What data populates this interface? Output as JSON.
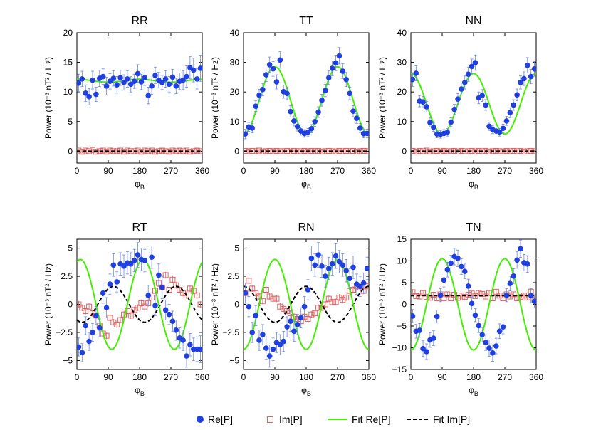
{
  "colors": {
    "re": "#1f3fe0",
    "im": "#e06060",
    "fit_re": "#44ee00",
    "fit_im": "#000000",
    "errbar_re": "#6a86e6"
  },
  "legend": {
    "re": "Re[P]",
    "im": "Im[P]",
    "fit_re": "Fit Re[P]",
    "fit_im": "Fit Im[P]"
  },
  "chart_data": [
    {
      "type": "scatter",
      "title": "RR",
      "xlabel": "φB",
      "ylabel": "Power (10⁻³ nT² / Hz)",
      "xlim": [
        0,
        360
      ],
      "ylim": [
        -2,
        20
      ],
      "xticks": [
        0,
        90,
        180,
        270,
        360
      ],
      "yticks": [
        0,
        5,
        10,
        15,
        20
      ],
      "x": [
        5,
        15,
        25,
        35,
        45,
        55,
        65,
        75,
        85,
        95,
        105,
        115,
        125,
        135,
        145,
        155,
        165,
        175,
        185,
        195,
        205,
        215,
        225,
        235,
        245,
        255,
        265,
        275,
        285,
        295,
        305,
        315,
        325,
        335,
        345,
        355
      ],
      "re": [
        11.5,
        12.2,
        9.8,
        9.2,
        12.0,
        9.6,
        12.3,
        12.6,
        11.0,
        11.8,
        12.3,
        11.2,
        12.4,
        11.6,
        12.2,
        11.3,
        11.8,
        13.1,
        11.7,
        12.4,
        9.4,
        11.0,
        12.8,
        12.0,
        11.6,
        12.2,
        11.3,
        12.5,
        11.0,
        11.8,
        12.0,
        12.6,
        14.1,
        13.7,
        12.2,
        14.0
      ],
      "re_err": [
        1.5,
        1.3,
        1.4,
        1.4,
        1.5,
        1.2,
        1.4,
        1.3,
        1.5,
        1.3,
        1.3,
        1.4,
        1.3,
        1.3,
        1.4,
        1.3,
        1.2,
        1.5,
        1.3,
        1.3,
        1.4,
        1.4,
        1.4,
        1.3,
        1.2,
        1.4,
        1.3,
        1.3,
        1.3,
        1.4,
        1.6,
        1.8,
        1.9,
        2.0,
        1.7,
        2.2
      ],
      "im": [
        0.1,
        -0.1,
        0.1,
        0.0,
        0.2,
        -0.1,
        0.0,
        0.1,
        -0.1,
        0.1,
        0.0,
        0.0,
        0.1,
        -0.1,
        0.1,
        0.0,
        0.0,
        0.1,
        -0.1,
        0.1,
        0.0,
        0.1,
        -0.1,
        0.0,
        0.1,
        0.0,
        -0.1,
        0.1,
        0.0,
        0.1,
        0.0,
        0.1,
        -0.1,
        0.0,
        0.1,
        0.0
      ],
      "im_err": 0.25,
      "fit_re": {
        "mean": 11.9,
        "amp": 0.25,
        "phase_deg": 0
      },
      "fit_im": {
        "mean": 0.0,
        "amp": 0.0,
        "phase_deg": 0
      }
    },
    {
      "type": "scatter",
      "title": "TT",
      "xlabel": "φB",
      "ylabel": "Power (10⁻³ nT² / Hz)",
      "xlim": [
        0,
        360
      ],
      "ylim": [
        -4,
        40
      ],
      "xticks": [
        0,
        90,
        180,
        270,
        360
      ],
      "yticks": [
        0,
        10,
        20,
        30,
        40
      ],
      "x": [
        5,
        15,
        25,
        35,
        45,
        55,
        65,
        75,
        85,
        95,
        105,
        115,
        125,
        135,
        145,
        155,
        165,
        175,
        185,
        195,
        205,
        215,
        225,
        235,
        245,
        255,
        265,
        275,
        285,
        295,
        305,
        315,
        325,
        335,
        345,
        355
      ],
      "re": [
        5.8,
        8.2,
        7.8,
        15.2,
        18.9,
        20.8,
        25.8,
        29.2,
        27.8,
        23.4,
        30.8,
        20.1,
        19.5,
        13.4,
        10.2,
        8.3,
        6.8,
        6.0,
        6.4,
        7.6,
        10.0,
        13.2,
        17.2,
        20.5,
        24.8,
        28.0,
        29.8,
        32.2,
        27.0,
        24.2,
        19.5,
        13.5,
        11.1,
        7.8,
        5.9,
        6.0
      ],
      "re_err": [
        1.6,
        1.5,
        1.6,
        1.8,
        2.0,
        2.1,
        2.3,
        2.6,
        2.5,
        2.4,
        2.8,
        2.2,
        2.1,
        1.9,
        1.7,
        1.5,
        1.4,
        1.3,
        1.3,
        1.4,
        1.6,
        1.8,
        2.0,
        2.1,
        2.3,
        2.5,
        2.6,
        2.8,
        2.5,
        2.4,
        2.1,
        1.9,
        1.7,
        1.5,
        1.4,
        1.4
      ],
      "im": [
        0.1,
        -0.1,
        0.1,
        0.0,
        0.2,
        -0.1,
        0.0,
        0.1,
        -0.1,
        0.1,
        0.0,
        0.0,
        0.1,
        -0.1,
        0.1,
        0.0,
        0.0,
        0.1,
        -0.1,
        0.1,
        0.0,
        0.1,
        -0.1,
        0.0,
        0.1,
        0.0,
        -0.1,
        0.1,
        0.0,
        0.1,
        0.0,
        0.1,
        -0.1,
        0.0,
        0.1,
        0.0
      ],
      "im_err": 0.5,
      "fit_re": {
        "mean": 17.2,
        "amp": -11.3,
        "phase_deg": 0
      },
      "fit_im": {
        "mean": 0.0,
        "amp": 0.0,
        "phase_deg": 0
      }
    },
    {
      "type": "scatter",
      "title": "NN",
      "xlabel": "φB",
      "ylabel": "Power (10⁻³ nT² / Hz)",
      "xlim": [
        0,
        360
      ],
      "ylim": [
        -4,
        40
      ],
      "xticks": [
        0,
        90,
        180,
        270,
        360
      ],
      "yticks": [
        0,
        10,
        20,
        30,
        40
      ],
      "x": [
        5,
        15,
        25,
        35,
        45,
        55,
        65,
        75,
        85,
        95,
        105,
        115,
        125,
        135,
        145,
        155,
        165,
        175,
        185,
        195,
        205,
        215,
        225,
        235,
        245,
        255,
        265,
        275,
        285,
        295,
        305,
        315,
        325,
        335,
        345,
        355
      ],
      "re": [
        24.2,
        26.3,
        16.9,
        16.6,
        15.0,
        9.7,
        8.1,
        5.8,
        5.7,
        6.0,
        6.4,
        9.8,
        14.1,
        17.6,
        21.0,
        23.2,
        26.0,
        28.6,
        29.9,
        18.0,
        18.8,
        15.6,
        8.4,
        7.3,
        6.8,
        6.4,
        7.7,
        10.2,
        13.0,
        15.6,
        19.0,
        23.2,
        24.5,
        29.0,
        25.2,
        27.8
      ],
      "re_err": [
        2.3,
        2.5,
        1.9,
        1.9,
        1.8,
        1.5,
        1.4,
        1.3,
        1.3,
        1.3,
        1.3,
        1.5,
        1.7,
        1.9,
        2.1,
        2.2,
        2.4,
        2.5,
        2.6,
        2.0,
        2.0,
        1.8,
        1.4,
        1.4,
        1.3,
        1.3,
        1.4,
        1.5,
        1.7,
        1.8,
        2.0,
        2.2,
        2.3,
        2.6,
        2.4,
        2.5
      ],
      "im": [
        0.1,
        -0.1,
        0.1,
        0.0,
        0.2,
        -0.1,
        0.0,
        0.1,
        -0.1,
        0.1,
        0.0,
        0.0,
        0.1,
        -0.1,
        0.1,
        0.0,
        0.0,
        0.1,
        -0.1,
        0.1,
        0.0,
        0.1,
        -0.1,
        0.0,
        0.1,
        0.0,
        -0.1,
        0.1,
        0.0,
        0.1,
        0.0,
        0.1,
        -0.1,
        0.0,
        0.1,
        0.0
      ],
      "im_err": 0.5,
      "fit_re": {
        "mean": 16.0,
        "amp": 10.2,
        "phase_deg": 0
      },
      "fit_im": {
        "mean": 0.0,
        "amp": 0.0,
        "phase_deg": 0
      }
    },
    {
      "type": "scatter",
      "title": "RT",
      "xlabel": "φB",
      "ylabel": "Power (10⁻³ nT² / Hz)",
      "xlim": [
        0,
        360
      ],
      "ylim": [
        -5.8,
        5.8
      ],
      "xticks": [
        0,
        90,
        180,
        270,
        360
      ],
      "yticks": [
        -5,
        -2.5,
        0,
        2.5,
        5
      ],
      "x": [
        5,
        15,
        25,
        35,
        45,
        55,
        65,
        75,
        85,
        95,
        105,
        115,
        125,
        135,
        145,
        155,
        165,
        175,
        185,
        195,
        205,
        215,
        225,
        235,
        245,
        255,
        265,
        275,
        285,
        295,
        305,
        315,
        325,
        335,
        345,
        355
      ],
      "re": [
        -3.8,
        -4.3,
        -1.9,
        -3.3,
        -2.5,
        -1.0,
        -2.1,
        1.0,
        -0.3,
        1.8,
        3.5,
        2.0,
        3.6,
        3.4,
        3.7,
        3.6,
        3.9,
        4.4,
        4.0,
        3.9,
        0.8,
        4.2,
        -0.1,
        2.6,
        1.5,
        -0.5,
        -0.9,
        -1.5,
        -2.3,
        -3.0,
        -3.2,
        -4.6,
        -3.6,
        -4.0,
        -4.0,
        -4.0
      ],
      "re_err": [
        0.8,
        0.8,
        0.8,
        0.8,
        0.8,
        0.8,
        0.8,
        0.9,
        0.9,
        0.9,
        1.0,
        0.9,
        1.0,
        1.0,
        1.0,
        1.0,
        1.0,
        1.1,
        1.0,
        1.0,
        0.9,
        1.0,
        0.9,
        1.0,
        1.0,
        0.9,
        0.9,
        0.9,
        0.9,
        0.9,
        0.9,
        1.0,
        1.0,
        1.0,
        1.1,
        1.2
      ],
      "im": [
        0.0,
        -0.3,
        -0.6,
        -0.2,
        -0.8,
        -1.0,
        -1.9,
        -2.6,
        -2.8,
        -1.2,
        -1.6,
        -1.8,
        -1.4,
        -0.9,
        -0.6,
        -1.0,
        -0.5,
        -0.3,
        0.1,
        -0.2,
        0.1,
        0.6,
        1.2,
        1.9,
        1.5,
        2.6,
        1.3,
        2.2,
        1.7,
        1.3,
        1.0,
        0.8,
        1.4,
        1.2,
        0.8,
        0.0
      ],
      "im_err": 0.3,
      "fit_re": {
        "mean": 0.0,
        "amp": 4.0,
        "phase_deg": 190
      },
      "fit_im": {
        "mean": 0.0,
        "amp": 1.6,
        "phase_deg": 285
      }
    },
    {
      "type": "scatter",
      "title": "RN",
      "xlabel": "φB",
      "ylabel": "Power (10⁻³ nT² / Hz)",
      "xlim": [
        0,
        360
      ],
      "ylim": [
        -5.8,
        5.8
      ],
      "xticks": [
        0,
        90,
        180,
        270,
        360
      ],
      "yticks": [
        -5,
        -2.5,
        0,
        2.5,
        5
      ],
      "x": [
        5,
        15,
        25,
        35,
        45,
        55,
        65,
        75,
        85,
        95,
        105,
        115,
        125,
        135,
        145,
        155,
        165,
        175,
        185,
        195,
        205,
        215,
        225,
        235,
        245,
        255,
        265,
        275,
        285,
        295,
        305,
        315,
        325,
        335,
        345,
        355
      ],
      "re": [
        1.0,
        -0.2,
        -2.5,
        -1.0,
        -3.2,
        -2.7,
        -3.9,
        -4.6,
        -4.0,
        -3.4,
        -3.6,
        -3.3,
        -2.0,
        -1.5,
        -2.4,
        -1.8,
        -1.2,
        -0.2,
        1.3,
        4.1,
        3.5,
        4.4,
        3.4,
        2.5,
        3.2,
        3.6,
        4.3,
        3.8,
        3.5,
        3.0,
        2.3,
        3.3,
        1.8,
        1.6,
        1.9,
        3.2
      ],
      "re_err": [
        0.9,
        0.9,
        0.9,
        0.9,
        0.9,
        0.9,
        1.0,
        1.0,
        1.0,
        0.9,
        0.9,
        0.9,
        0.9,
        0.9,
        0.9,
        0.9,
        0.9,
        0.9,
        0.9,
        1.1,
        1.0,
        1.1,
        1.0,
        1.0,
        1.0,
        1.0,
        1.1,
        1.0,
        1.0,
        1.0,
        0.9,
        1.0,
        0.9,
        0.9,
        0.9,
        1.0
      ],
      "im": [
        1.0,
        2.1,
        1.4,
        1.0,
        0.7,
        0.3,
        1.3,
        0.7,
        0.5,
        0.5,
        -0.2,
        -0.4,
        -0.6,
        -0.8,
        -1.1,
        -1.3,
        -1.5,
        -1.1,
        -1.3,
        -0.9,
        -0.8,
        -0.3,
        -0.3,
        0.0,
        0.5,
        0.2,
        0.2,
        0.6,
        0.4,
        0.6,
        1.2,
        1.3,
        1.6,
        1.5,
        1.2,
        1.6
      ],
      "im_err": 0.3,
      "fit_re": {
        "mean": 0.0,
        "amp": 4.0,
        "phase_deg": 270
      },
      "fit_im": {
        "mean": 0.0,
        "amp": 1.6,
        "phase_deg": 0
      }
    },
    {
      "type": "scatter",
      "title": "TN",
      "xlabel": "φB",
      "ylabel": "Power (10⁻³ nT² / Hz)",
      "xlim": [
        0,
        360
      ],
      "ylim": [
        -15,
        15
      ],
      "xticks": [
        0,
        90,
        180,
        270,
        360
      ],
      "yticks": [
        -15,
        -10,
        -5,
        0,
        5,
        10,
        15
      ],
      "x": [
        5,
        15,
        25,
        35,
        45,
        55,
        65,
        75,
        85,
        95,
        105,
        115,
        125,
        135,
        145,
        155,
        165,
        175,
        185,
        195,
        205,
        215,
        225,
        235,
        245,
        255,
        265,
        275,
        285,
        295,
        305,
        315,
        325,
        335,
        345,
        355
      ],
      "re": [
        -2.7,
        -6.2,
        -6.0,
        -10.2,
        -10.9,
        -8.2,
        -7.8,
        -2.8,
        2.1,
        5.6,
        8.0,
        9.5,
        11.0,
        10.6,
        8.7,
        7.6,
        4.2,
        0.2,
        -2.5,
        -4.9,
        -7.0,
        -8.8,
        -10.1,
        -11.2,
        -9.6,
        -6.2,
        -5.2,
        2.1,
        4.8,
        6.5,
        10.2,
        12.8,
        9.6,
        9.3,
        2.0,
        0.7
      ],
      "re_err": [
        1.5,
        1.6,
        1.6,
        1.8,
        1.8,
        1.7,
        1.7,
        1.5,
        1.5,
        1.6,
        1.7,
        1.8,
        1.9,
        1.9,
        1.8,
        1.7,
        1.6,
        1.5,
        1.5,
        1.6,
        1.7,
        1.8,
        1.9,
        1.9,
        1.8,
        1.7,
        1.6,
        1.5,
        1.7,
        1.7,
        1.9,
        2.0,
        1.9,
        1.9,
        1.6,
        1.5
      ],
      "im": [
        2.8,
        1.9,
        1.8,
        2.6,
        1.7,
        1.5,
        2.2,
        1.4,
        2.3,
        1.4,
        2.3,
        1.4,
        2.2,
        1.5,
        2.0,
        1.7,
        2.2,
        2.5,
        1.9,
        2.6,
        2.4,
        1.8,
        2.6,
        1.4,
        2.9,
        2.0,
        1.4,
        2.3,
        1.8,
        2.3,
        1.4,
        1.7,
        2.0,
        1.6,
        2.9,
        1.1
      ],
      "im_err": 0.6,
      "fit_re": {
        "mean": 0.0,
        "amp": -10.5,
        "phase_deg": 0
      },
      "fit_im": {
        "mean": 2.0,
        "amp": 0.0,
        "phase_deg": 0
      }
    }
  ]
}
